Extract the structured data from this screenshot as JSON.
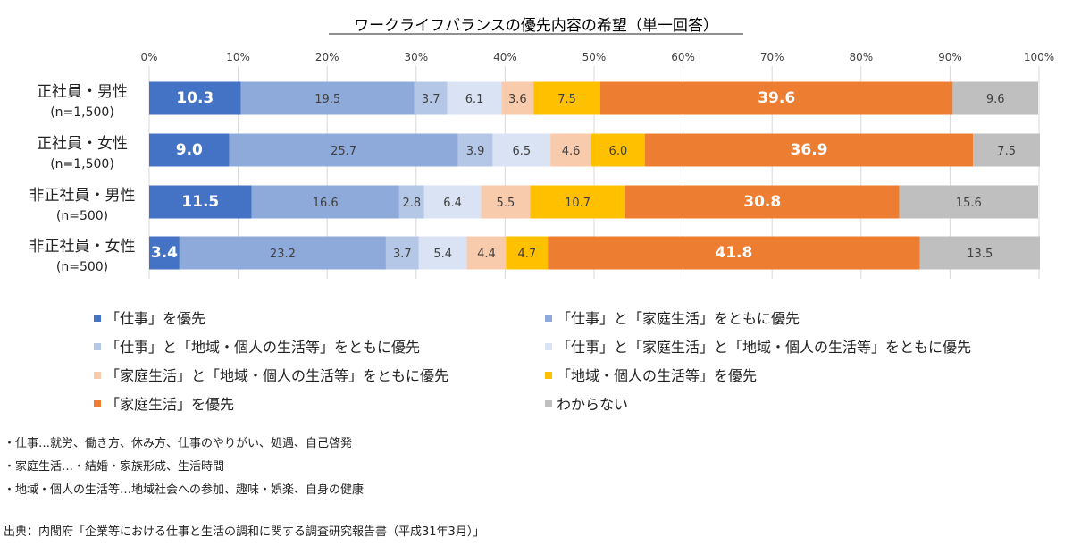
{
  "chart_data": {
    "type": "bar",
    "orientation": "horizontal",
    "stacked": "percent",
    "title": "ワークライフバランスの優先内容の希望（単一回答）",
    "xlim": [
      0,
      100
    ],
    "x_ticks": [
      "0%",
      "10%",
      "20%",
      "30%",
      "40%",
      "50%",
      "60%",
      "70%",
      "80%",
      "90%",
      "100%"
    ],
    "grid": true,
    "legend_position": "bottom",
    "categories": [
      {
        "label": "正社員・男性",
        "sublabel": "(n=1,500)"
      },
      {
        "label": "正社員・女性",
        "sublabel": "(n=1,500)"
      },
      {
        "label": "非正社員・男性",
        "sublabel": "(n=500)"
      },
      {
        "label": "非正社員・女性",
        "sublabel": "(n=500)"
      }
    ],
    "series": [
      {
        "name": "「仕事」を優先",
        "color": "#4472c4",
        "label_color": "#ffffff",
        "bold": true,
        "values": [
          10.3,
          9.0,
          11.5,
          3.4
        ]
      },
      {
        "name": "「仕事」と「家庭生活」をともに優先",
        "color": "#8eaadb",
        "label_color": "#404040",
        "bold": false,
        "values": [
          19.5,
          25.7,
          16.6,
          23.2
        ]
      },
      {
        "name": "「仕事」と「地域・個人の生活等」をともに優先",
        "color": "#b4c7e7",
        "label_color": "#404040",
        "bold": false,
        "values": [
          3.7,
          3.9,
          2.8,
          3.7
        ]
      },
      {
        "name": "「仕事」と「家庭生活」と「地域・個人の生活等」をともに優先",
        "color": "#dae3f3",
        "label_color": "#404040",
        "bold": false,
        "values": [
          6.1,
          6.5,
          6.4,
          5.4
        ]
      },
      {
        "name": "「家庭生活」と「地域・個人の生活等」をともに優先",
        "color": "#f8cbad",
        "label_color": "#404040",
        "bold": false,
        "values": [
          3.6,
          4.6,
          5.5,
          4.4
        ]
      },
      {
        "name": "「地域・個人の生活等」を優先",
        "color": "#ffc000",
        "label_color": "#404040",
        "bold": false,
        "values": [
          7.5,
          6.0,
          10.7,
          4.7
        ]
      },
      {
        "name": "「家庭生活」を優先",
        "color": "#ed7d31",
        "label_color": "#ffffff",
        "bold": true,
        "values": [
          39.6,
          36.9,
          30.8,
          41.8
        ]
      },
      {
        "name": "わからない",
        "color": "#bfbfbf",
        "label_color": "#404040",
        "bold": false,
        "values": [
          9.6,
          7.5,
          15.6,
          13.5
        ]
      }
    ]
  },
  "notes": [
    "・仕事…就労、働き方、休み方、仕事のやりがい、処遇、自己啓発",
    "・家庭生活…・結婚・家族形成、生活時間",
    "・地域・個人の生活等…地域社会への参加、趣味・娯楽、自身の健康"
  ],
  "source": "出典：内閣府「企業等における仕事と生活の調和に関する調査研究報告書（平成31年3月）」"
}
